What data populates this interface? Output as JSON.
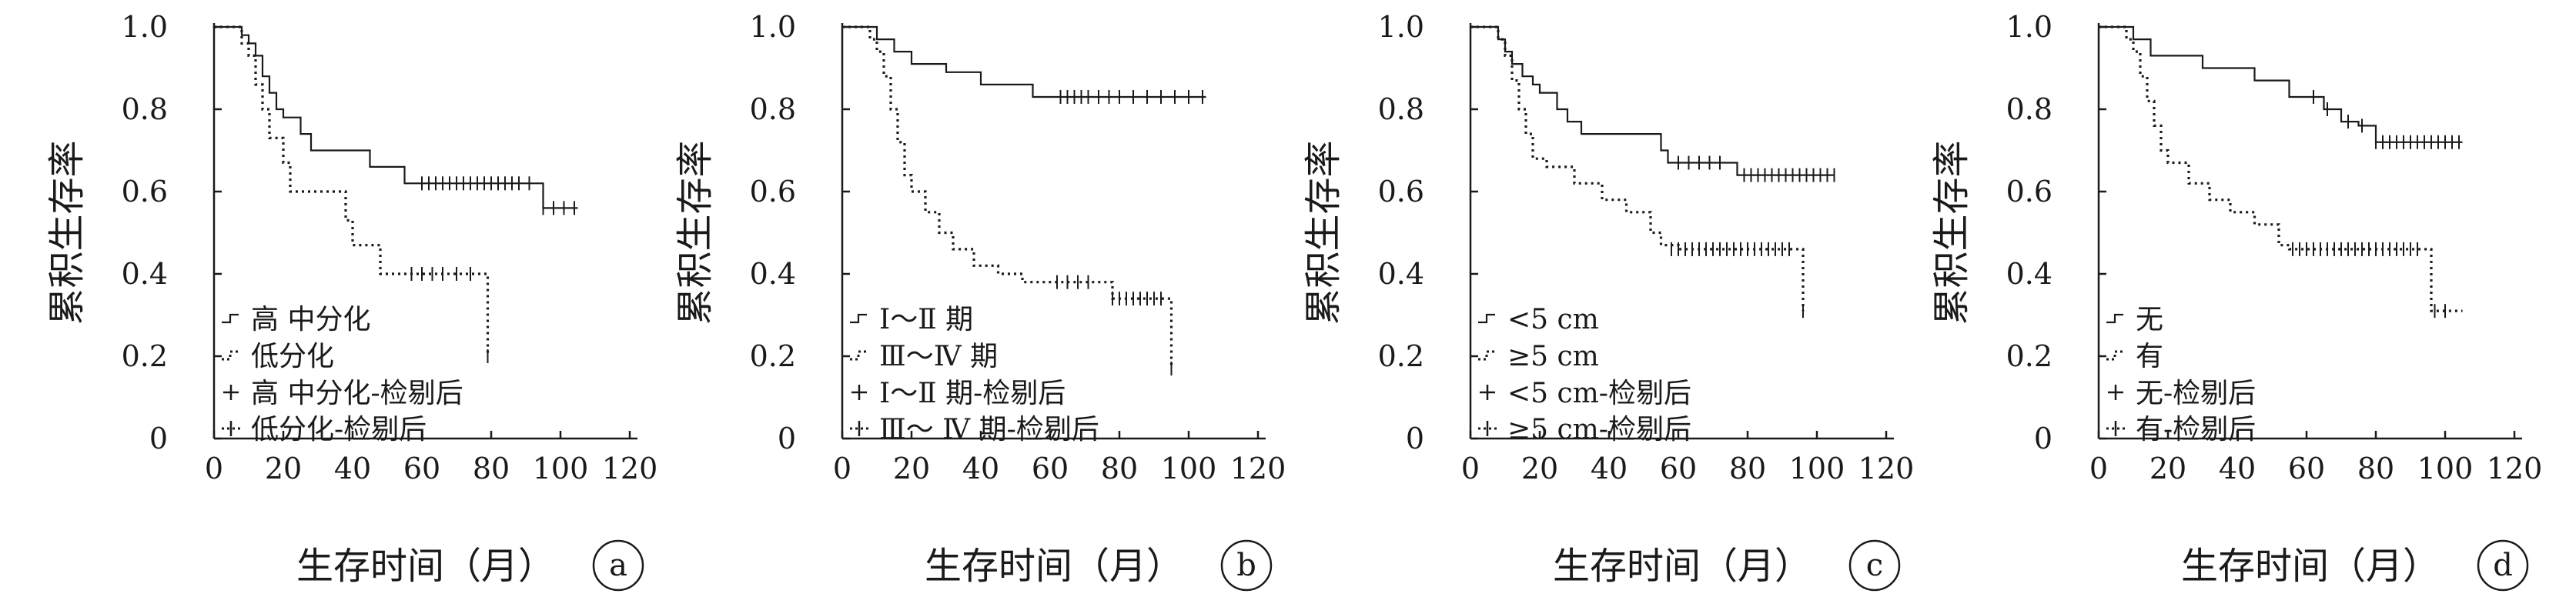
{
  "chart_data": [
    {
      "type": "line",
      "panel_label": "a",
      "xlabel": "生存时间（月）",
      "ylabel": "累积生存率",
      "xticks": [
        "0",
        "20",
        "40",
        "60",
        "80",
        "100",
        "120"
      ],
      "yticks": [
        "0",
        "0.2",
        "0.4",
        "0.6",
        "0.8",
        "1.0"
      ],
      "xlim": [
        0,
        120
      ],
      "ylim": [
        0,
        1.0
      ],
      "legend_position": "bottom-left",
      "legend": [
        "高 中分化",
        "低分化",
        "高 中分化-检剔后",
        "低分化-检剔后"
      ],
      "series": [
        {
          "name": "高 中分化",
          "style": "solid",
          "x": [
            0,
            3,
            8,
            10,
            12,
            14,
            16,
            18,
            20,
            22,
            25,
            28,
            38,
            45,
            55,
            65,
            80,
            94,
            95,
            105
          ],
          "y": [
            1.0,
            1.0,
            0.98,
            0.96,
            0.93,
            0.88,
            0.84,
            0.8,
            0.78,
            0.78,
            0.74,
            0.7,
            0.7,
            0.66,
            0.62,
            0.62,
            0.62,
            0.62,
            0.56,
            0.56
          ],
          "censored_x": [
            60,
            62,
            64,
            66,
            68,
            70,
            72,
            74,
            76,
            78,
            80,
            82,
            84,
            86,
            88,
            91,
            95,
            98,
            101,
            104
          ],
          "censored_y": [
            0.62,
            0.62,
            0.62,
            0.62,
            0.62,
            0.62,
            0.62,
            0.62,
            0.62,
            0.62,
            0.62,
            0.62,
            0.62,
            0.62,
            0.62,
            0.62,
            0.56,
            0.56,
            0.56,
            0.56
          ]
        },
        {
          "name": "低分化",
          "style": "dotted",
          "x": [
            0,
            4,
            8,
            10,
            12,
            14,
            16,
            20,
            22,
            33,
            38,
            40,
            48,
            55,
            77,
            79
          ],
          "y": [
            1.0,
            1.0,
            0.96,
            0.93,
            0.86,
            0.8,
            0.73,
            0.67,
            0.6,
            0.6,
            0.53,
            0.47,
            0.4,
            0.4,
            0.4,
            0.2
          ],
          "censored_x": [
            57,
            60,
            63,
            66,
            70,
            74,
            79
          ],
          "censored_y": [
            0.4,
            0.4,
            0.4,
            0.4,
            0.4,
            0.4,
            0.2
          ]
        }
      ]
    },
    {
      "type": "line",
      "panel_label": "b",
      "xlabel": "生存时间（月）",
      "ylabel": "累积生存率",
      "xticks": [
        "0",
        "20",
        "40",
        "60",
        "80",
        "100",
        "120"
      ],
      "yticks": [
        "0",
        "0.2",
        "0.4",
        "0.6",
        "0.8",
        "1.0"
      ],
      "xlim": [
        0,
        120
      ],
      "ylim": [
        0,
        1.0
      ],
      "legend_position": "bottom-left",
      "legend": [
        "Ⅰ～Ⅱ 期",
        "Ⅲ～Ⅳ 期",
        "Ⅰ～Ⅱ 期-检剔后",
        "Ⅲ～ Ⅳ 期-检剔后"
      ],
      "series": [
        {
          "name": "Ⅰ～Ⅱ 期",
          "style": "solid",
          "x": [
            0,
            10,
            15,
            20,
            30,
            40,
            55,
            60,
            105
          ],
          "y": [
            1.0,
            0.97,
            0.94,
            0.91,
            0.89,
            0.86,
            0.83,
            0.83,
            0.83
          ],
          "censored_x": [
            63,
            65,
            67,
            69,
            71,
            74,
            77,
            80,
            84,
            88,
            92,
            96,
            100,
            104
          ],
          "censored_y": [
            0.83,
            0.83,
            0.83,
            0.83,
            0.83,
            0.83,
            0.83,
            0.83,
            0.83,
            0.83,
            0.83,
            0.83,
            0.83,
            0.83
          ]
        },
        {
          "name": "Ⅲ～Ⅳ 期",
          "style": "dotted",
          "x": [
            0,
            5,
            8,
            10,
            12,
            14,
            16,
            18,
            20,
            24,
            28,
            32,
            38,
            45,
            52,
            60,
            78,
            94,
            95
          ],
          "y": [
            1.0,
            1.0,
            0.97,
            0.94,
            0.88,
            0.8,
            0.72,
            0.64,
            0.6,
            0.55,
            0.5,
            0.46,
            0.42,
            0.4,
            0.38,
            0.38,
            0.34,
            0.34,
            0.17
          ],
          "censored_x": [
            62,
            65,
            68,
            71,
            78,
            80,
            82,
            84,
            86,
            88,
            90,
            92,
            95
          ],
          "censored_y": [
            0.38,
            0.38,
            0.38,
            0.38,
            0.34,
            0.34,
            0.34,
            0.34,
            0.34,
            0.34,
            0.34,
            0.34,
            0.17
          ]
        }
      ]
    },
    {
      "type": "line",
      "panel_label": "c",
      "xlabel": "生存时间（月）",
      "ylabel": "累积生存率",
      "xticks": [
        "0",
        "20",
        "40",
        "60",
        "80",
        "100",
        "120"
      ],
      "yticks": [
        "0",
        "0.2",
        "0.4",
        "0.6",
        "0.8",
        "1.0"
      ],
      "xlim": [
        0,
        120
      ],
      "ylim": [
        0,
        1.0
      ],
      "legend_position": "bottom-left",
      "legend": [
        "<5 cm",
        "≥5 cm",
        "<5 cm-检剔后",
        "≥5 cm-检剔后"
      ],
      "series": [
        {
          "name": "<5 cm",
          "style": "solid",
          "x": [
            0,
            5,
            8,
            10,
            12,
            15,
            18,
            20,
            25,
            28,
            32,
            45,
            55,
            57,
            75,
            77,
            105
          ],
          "y": [
            1.0,
            1.0,
            0.97,
            0.94,
            0.91,
            0.88,
            0.86,
            0.84,
            0.8,
            0.77,
            0.74,
            0.74,
            0.7,
            0.67,
            0.67,
            0.64,
            0.64
          ],
          "censored_x": [
            60,
            63,
            66,
            69,
            72,
            79,
            81,
            83,
            85,
            87,
            89,
            91,
            93,
            95,
            97,
            99,
            101,
            103,
            105
          ],
          "censored_y": [
            0.67,
            0.67,
            0.67,
            0.67,
            0.67,
            0.64,
            0.64,
            0.64,
            0.64,
            0.64,
            0.64,
            0.64,
            0.64,
            0.64,
            0.64,
            0.64,
            0.64,
            0.64,
            0.64
          ]
        },
        {
          "name": "≥5 cm",
          "style": "dotted",
          "x": [
            0,
            5,
            8,
            10,
            12,
            14,
            16,
            18,
            22,
            30,
            38,
            45,
            52,
            55,
            60,
            94,
            96
          ],
          "y": [
            1.0,
            1.0,
            0.97,
            0.93,
            0.87,
            0.8,
            0.74,
            0.68,
            0.66,
            0.62,
            0.58,
            0.55,
            0.5,
            0.47,
            0.46,
            0.46,
            0.31
          ],
          "censored_x": [
            58,
            60,
            62,
            64,
            66,
            68,
            70,
            72,
            74,
            76,
            78,
            80,
            82,
            84,
            86,
            88,
            90,
            92,
            96
          ],
          "censored_y": [
            0.46,
            0.46,
            0.46,
            0.46,
            0.46,
            0.46,
            0.46,
            0.46,
            0.46,
            0.46,
            0.46,
            0.46,
            0.46,
            0.46,
            0.46,
            0.46,
            0.46,
            0.46,
            0.31
          ]
        }
      ]
    },
    {
      "type": "line",
      "panel_label": "d",
      "xlabel": "生存时间（月）",
      "ylabel": "累积生存率",
      "xticks": [
        "0",
        "20",
        "40",
        "60",
        "80",
        "100",
        "120"
      ],
      "yticks": [
        "0",
        "0.2",
        "0.4",
        "0.6",
        "0.8",
        "1.0"
      ],
      "xlim": [
        0,
        120
      ],
      "ylim": [
        0,
        1.0
      ],
      "legend_position": "bottom-left",
      "legend": [
        "无",
        "有",
        "无-检剔后",
        "有-检剔后"
      ],
      "series": [
        {
          "name": "无",
          "style": "solid",
          "x": [
            0,
            10,
            15,
            25,
            30,
            45,
            55,
            60,
            65,
            70,
            75,
            80,
            105
          ],
          "y": [
            1.0,
            0.97,
            0.93,
            0.93,
            0.9,
            0.87,
            0.83,
            0.83,
            0.8,
            0.77,
            0.76,
            0.72,
            0.72
          ],
          "censored_x": [
            62,
            66,
            72,
            76,
            80,
            82,
            84,
            86,
            88,
            90,
            92,
            94,
            96,
            98,
            100,
            102,
            104
          ],
          "censored_y": [
            0.83,
            0.8,
            0.77,
            0.76,
            0.72,
            0.72,
            0.72,
            0.72,
            0.72,
            0.72,
            0.72,
            0.72,
            0.72,
            0.72,
            0.72,
            0.72,
            0.72
          ]
        },
        {
          "name": "有",
          "style": "dotted",
          "x": [
            0,
            5,
            8,
            10,
            12,
            14,
            16,
            18,
            20,
            26,
            32,
            38,
            45,
            52,
            55,
            60,
            94,
            96,
            105
          ],
          "y": [
            1.0,
            1.0,
            0.97,
            0.94,
            0.88,
            0.82,
            0.76,
            0.7,
            0.67,
            0.62,
            0.58,
            0.55,
            0.52,
            0.47,
            0.46,
            0.46,
            0.46,
            0.31,
            0.31
          ],
          "censored_x": [
            56,
            58,
            60,
            62,
            64,
            66,
            68,
            70,
            72,
            74,
            76,
            78,
            80,
            82,
            84,
            86,
            88,
            90,
            92,
            97,
            100
          ],
          "censored_y": [
            0.46,
            0.46,
            0.46,
            0.46,
            0.46,
            0.46,
            0.46,
            0.46,
            0.46,
            0.46,
            0.46,
            0.46,
            0.46,
            0.46,
            0.46,
            0.46,
            0.46,
            0.46,
            0.46,
            0.31,
            0.31
          ]
        }
      ]
    }
  ]
}
